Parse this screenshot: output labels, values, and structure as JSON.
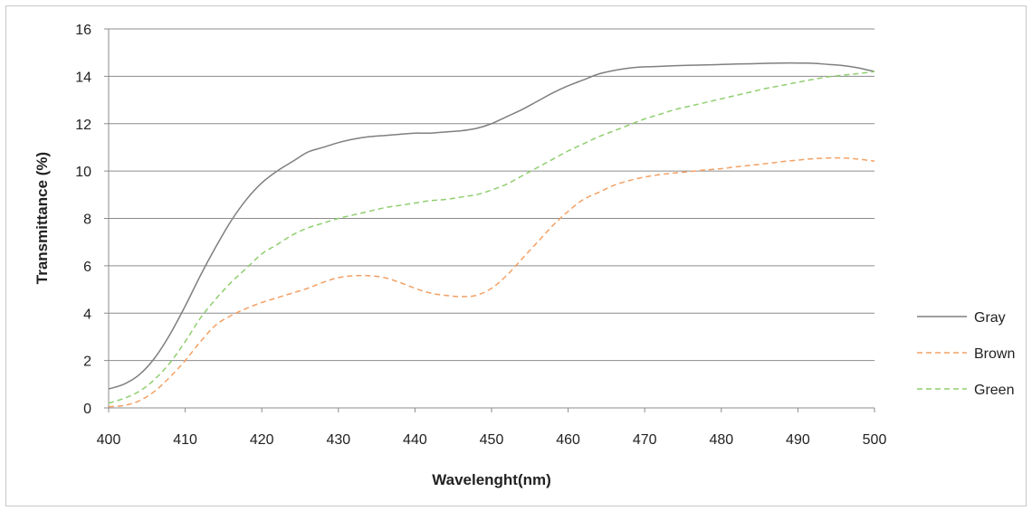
{
  "chart_data": {
    "type": "line",
    "title": "",
    "xlabel": "Wavelenght(nm)",
    "ylabel": "Transmittance (%)",
    "xlim": [
      400,
      500
    ],
    "ylim": [
      0,
      16
    ],
    "x_ticks": [
      "400",
      "410",
      "420",
      "430",
      "440",
      "450",
      "460",
      "470",
      "480",
      "490",
      "500"
    ],
    "y_ticks": [
      "0",
      "2",
      "4",
      "6",
      "8",
      "10",
      "12",
      "14",
      "16"
    ],
    "grid": "horizontal",
    "legend_position": "right",
    "x": [
      400,
      402,
      404,
      406,
      408,
      410,
      412,
      414,
      416,
      418,
      420,
      422,
      424,
      426,
      428,
      430,
      432,
      434,
      436,
      438,
      440,
      442,
      444,
      446,
      448,
      450,
      452,
      454,
      456,
      458,
      460,
      462,
      464,
      466,
      468,
      470,
      472,
      474,
      476,
      478,
      480,
      482,
      484,
      486,
      488,
      490,
      492,
      494,
      496,
      498,
      500
    ],
    "series": [
      {
        "name": "Gray",
        "color": "#7f7f7f",
        "dash": "solid",
        "values": [
          0.8,
          1.0,
          1.4,
          2.1,
          3.1,
          4.3,
          5.6,
          6.8,
          7.9,
          8.8,
          9.5,
          10.0,
          10.4,
          10.8,
          11.0,
          11.2,
          11.35,
          11.45,
          11.5,
          11.55,
          11.6,
          11.6,
          11.65,
          11.7,
          11.8,
          12.0,
          12.3,
          12.6,
          12.95,
          13.3,
          13.6,
          13.85,
          14.1,
          14.25,
          14.35,
          14.4,
          14.42,
          14.45,
          14.47,
          14.48,
          14.5,
          14.52,
          14.53,
          14.55,
          14.56,
          14.56,
          14.55,
          14.5,
          14.45,
          14.35,
          14.2
        ]
      },
      {
        "name": "Brown",
        "color": "#f4a064",
        "dash": "dashed",
        "values": [
          0.05,
          0.1,
          0.3,
          0.7,
          1.3,
          2.0,
          2.8,
          3.5,
          3.9,
          4.2,
          4.45,
          4.65,
          4.85,
          5.05,
          5.3,
          5.5,
          5.58,
          5.58,
          5.5,
          5.3,
          5.05,
          4.85,
          4.75,
          4.7,
          4.75,
          5.05,
          5.6,
          6.3,
          7.0,
          7.7,
          8.3,
          8.8,
          9.1,
          9.4,
          9.6,
          9.75,
          9.85,
          9.92,
          9.98,
          10.05,
          10.1,
          10.18,
          10.25,
          10.32,
          10.4,
          10.46,
          10.52,
          10.55,
          10.55,
          10.5,
          10.42
        ]
      },
      {
        "name": "Green",
        "color": "#8fce6e",
        "dash": "dashed",
        "values": [
          0.2,
          0.4,
          0.7,
          1.2,
          1.9,
          2.8,
          3.8,
          4.6,
          5.3,
          5.9,
          6.5,
          6.9,
          7.3,
          7.6,
          7.8,
          8.0,
          8.15,
          8.3,
          8.45,
          8.55,
          8.65,
          8.75,
          8.8,
          8.9,
          9.0,
          9.2,
          9.45,
          9.8,
          10.15,
          10.5,
          10.85,
          11.15,
          11.45,
          11.7,
          11.95,
          12.2,
          12.4,
          12.6,
          12.75,
          12.9,
          13.05,
          13.2,
          13.35,
          13.5,
          13.62,
          13.75,
          13.87,
          13.98,
          14.05,
          14.12,
          14.2
        ]
      }
    ]
  }
}
